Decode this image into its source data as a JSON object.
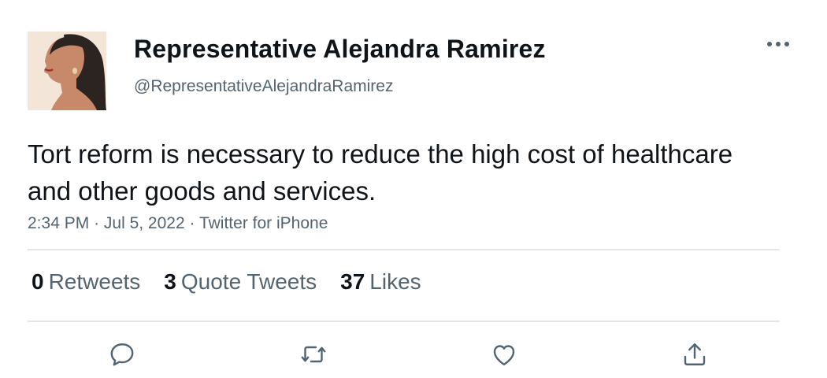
{
  "author": {
    "display_name": "Representative Alejandra Ramirez",
    "handle": "@RepresentativeAlejandraRamirez"
  },
  "tweet": {
    "text": "Tort reform is necessary to reduce the high cost of healthcare and other goods and services.",
    "time": "2:34 PM",
    "separator": "·",
    "date": "Jul 5, 2022",
    "source": "Twitter for iPhone"
  },
  "stats": {
    "retweets": {
      "count": "0",
      "label": "Retweets"
    },
    "quote_tweets": {
      "count": "3",
      "label": "Quote Tweets"
    },
    "likes": {
      "count": "37",
      "label": "Likes"
    }
  },
  "icons": {
    "more": "more-horizontal-icon",
    "reply": "reply-icon",
    "retweet": "retweet-icon",
    "like": "heart-icon",
    "share": "share-icon"
  },
  "colors": {
    "text": "#0f1419",
    "secondary": "#536471",
    "divider": "#e1e6ea"
  }
}
